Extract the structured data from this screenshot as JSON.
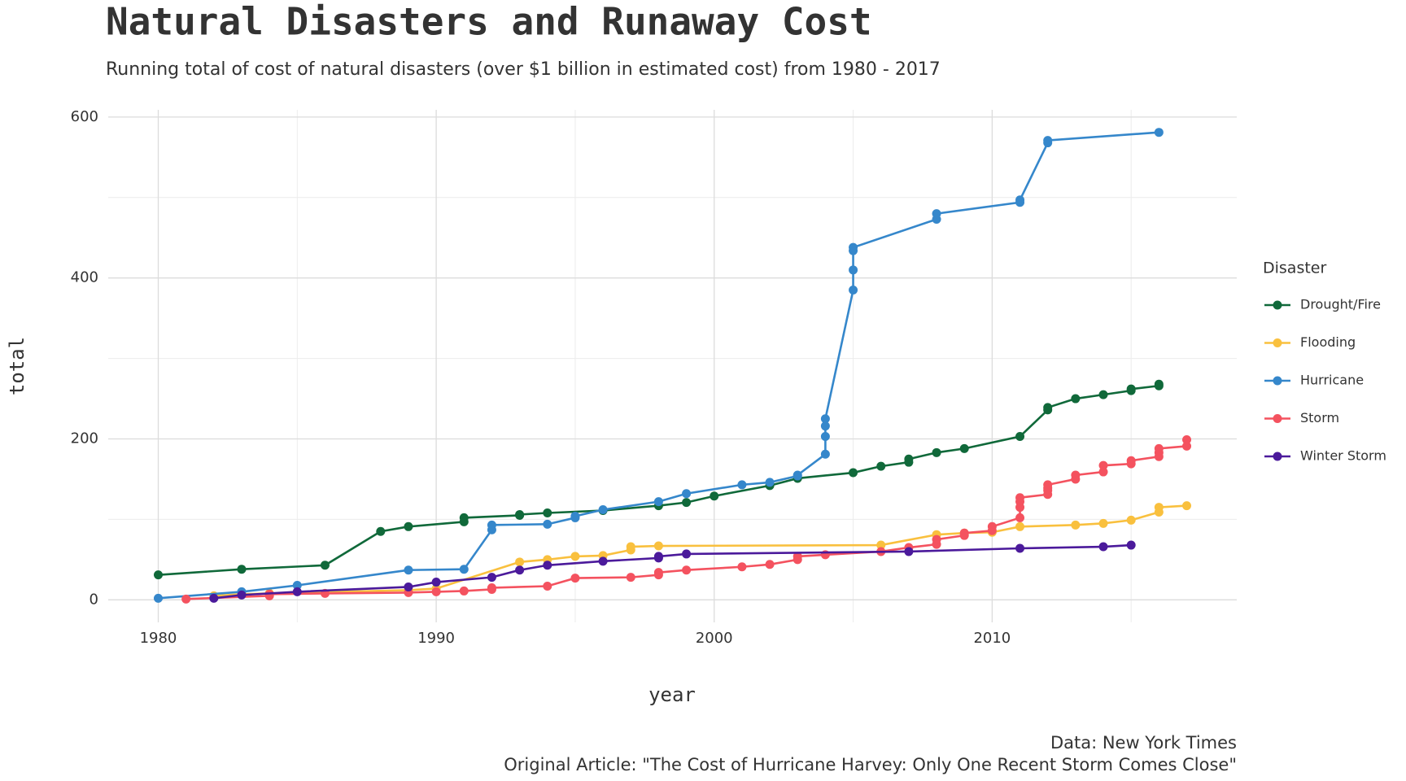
{
  "chart_data": {
    "type": "line",
    "title": "Natural Disasters and Runaway Cost",
    "subtitle": "Running total of cost of natural disasters (over $1 billion in estimated cost) from 1980 - 2017",
    "x_label": "year",
    "y_label": "total",
    "caption": [
      "Data: New York Times",
      "Original Article: \"The Cost of Hurricane Harvey: Only One Recent Storm Comes Close\""
    ],
    "legend_title": "Disaster",
    "legend": "right",
    "grid": true,
    "xlim": [
      1978.2,
      2018.8
    ],
    "ylim": [
      -28,
      609
    ],
    "xticks": [
      1980,
      1990,
      2000,
      2010
    ],
    "yticks": [
      0,
      200,
      400,
      600
    ],
    "series": [
      {
        "name": "Drought/Fire",
        "color": "#10693a",
        "x": [
          1980,
          1983,
          1986,
          1988,
          1989,
          1991,
          1991,
          1993,
          1993,
          1994,
          1996,
          1998,
          1999,
          2000,
          2002,
          2003,
          2005,
          2006,
          2007,
          2007,
          2008,
          2009,
          2011,
          2012,
          2012,
          2013,
          2014,
          2015,
          2015,
          2016,
          2016
        ],
        "values": [
          31,
          38,
          43,
          85,
          91,
          97,
          102,
          105,
          106,
          108,
          111,
          117,
          121,
          129,
          142,
          151,
          158,
          166,
          171,
          175,
          183,
          188,
          203,
          236,
          239,
          250,
          255,
          260,
          262,
          266,
          268
        ]
      },
      {
        "name": "Flooding",
        "color": "#f9c03e",
        "x": [
          1982,
          1983,
          1984,
          1989,
          1990,
          1993,
          1994,
          1995,
          1996,
          1997,
          1997,
          1998,
          2006,
          2008,
          2009,
          2010,
          2011,
          2013,
          2014,
          2015,
          2016,
          2016,
          2017
        ],
        "values": [
          5,
          7,
          8,
          12,
          14,
          47,
          50,
          54,
          55,
          62,
          66,
          67,
          68,
          81,
          83,
          84,
          91,
          93,
          95,
          99,
          109,
          115,
          117
        ]
      },
      {
        "name": "Hurricane",
        "color": "#3587cb",
        "x": [
          1980,
          1983,
          1985,
          1989,
          1991,
          1992,
          1992,
          1994,
          1995,
          1995,
          1996,
          1998,
          1999,
          2001,
          2002,
          2003,
          2003,
          2004,
          2004,
          2004,
          2004,
          2005,
          2005,
          2005,
          2005,
          2008,
          2008,
          2011,
          2011,
          2012,
          2012,
          2016
        ],
        "values": [
          2,
          10,
          18,
          37,
          38,
          87,
          93,
          94,
          102,
          104,
          112,
          122,
          132,
          143,
          146,
          154,
          155,
          181,
          203,
          216,
          225,
          385,
          410,
          434,
          438,
          473,
          480,
          494,
          497,
          568,
          571,
          581
        ]
      },
      {
        "name": "Storm",
        "color": "#f4525f",
        "x": [
          1981,
          1984,
          1984,
          1986,
          1989,
          1990,
          1991,
          1992,
          1992,
          1994,
          1995,
          1997,
          1998,
          1998,
          1999,
          2001,
          2002,
          2003,
          2003,
          2004,
          2006,
          2007,
          2008,
          2008,
          2009,
          2009,
          2010,
          2010,
          2011,
          2011,
          2011,
          2011,
          2012,
          2012,
          2012,
          2012,
          2013,
          2013,
          2014,
          2014,
          2015,
          2015,
          2016,
          2016,
          2016,
          2017,
          2017
        ],
        "values": [
          1,
          5,
          7,
          8,
          9,
          10,
          11,
          13,
          15,
          17,
          27,
          28,
          31,
          34,
          37,
          41,
          44,
          50,
          54,
          56,
          60,
          65,
          69,
          75,
          80,
          83,
          86,
          91,
          102,
          115,
          122,
          127,
          131,
          136,
          139,
          143,
          150,
          155,
          159,
          167,
          169,
          173,
          178,
          183,
          188,
          191,
          199
        ]
      },
      {
        "name": "Winter Storm",
        "color": "#4b1a9b",
        "x": [
          1982,
          1983,
          1985,
          1989,
          1990,
          1992,
          1993,
          1994,
          1996,
          1998,
          1998,
          1999,
          2007,
          2011,
          2014,
          2015
        ],
        "values": [
          2,
          6,
          10,
          16,
          22,
          28,
          37,
          43,
          48,
          52,
          54,
          57,
          60,
          64,
          66,
          68
        ]
      }
    ]
  }
}
